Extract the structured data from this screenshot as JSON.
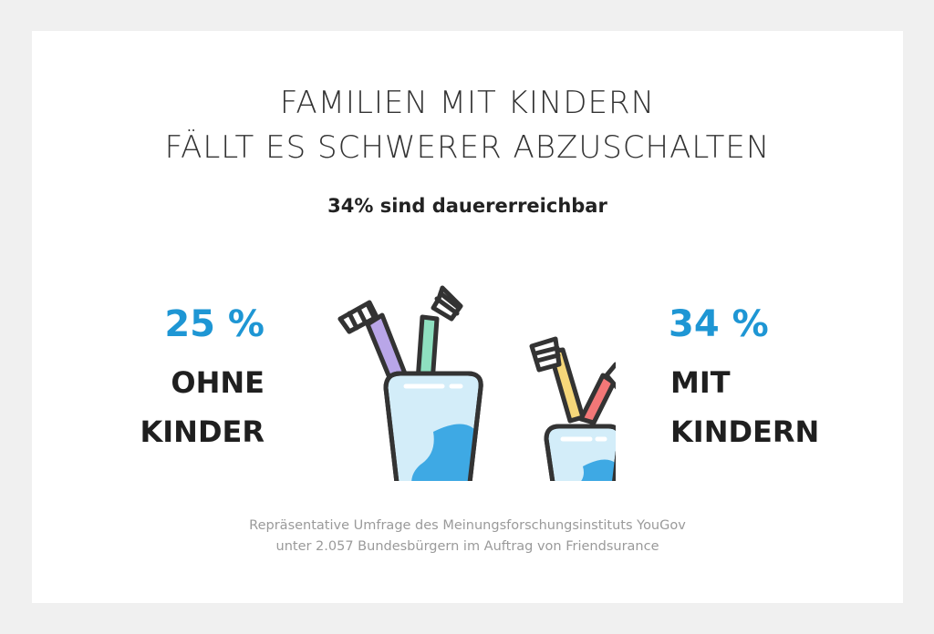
{
  "title": {
    "line1": "FAMILIEN MIT KINDERN",
    "line2": "FÄLLT ES SCHWERER ABZUSCHALTEN"
  },
  "subtitle": "34% sind dauererreichbar",
  "left": {
    "percent": "25 %",
    "label_line1": "OHNE",
    "label_line2": "KINDER"
  },
  "right": {
    "percent": "34 %",
    "label_line1": "MIT",
    "label_line2": "KINDERN"
  },
  "source": {
    "line1": "Repräsentative Umfrage des Meinungsforschungsinstituts YouGov",
    "line2": "unter 2.057 Bundesbürgern im Auftrag von Friendsurance"
  },
  "illustration": {
    "icons": [
      "toothbrush-cup-large-icon",
      "toothbrush-cup-small-icon"
    ]
  },
  "colors": {
    "background": "#f0f0f0",
    "card": "#ffffff",
    "accent_blue": "#1e96d4",
    "text_dark": "#1f1f1f",
    "source_gray": "#9a9a9a",
    "brush_purple": "#b9a6e8",
    "brush_green": "#8ee0c0",
    "brush_yellow": "#f6d77a",
    "brush_red": "#f27777",
    "cup_light": "#d3edf9",
    "cup_accent": "#3ea9e4"
  }
}
